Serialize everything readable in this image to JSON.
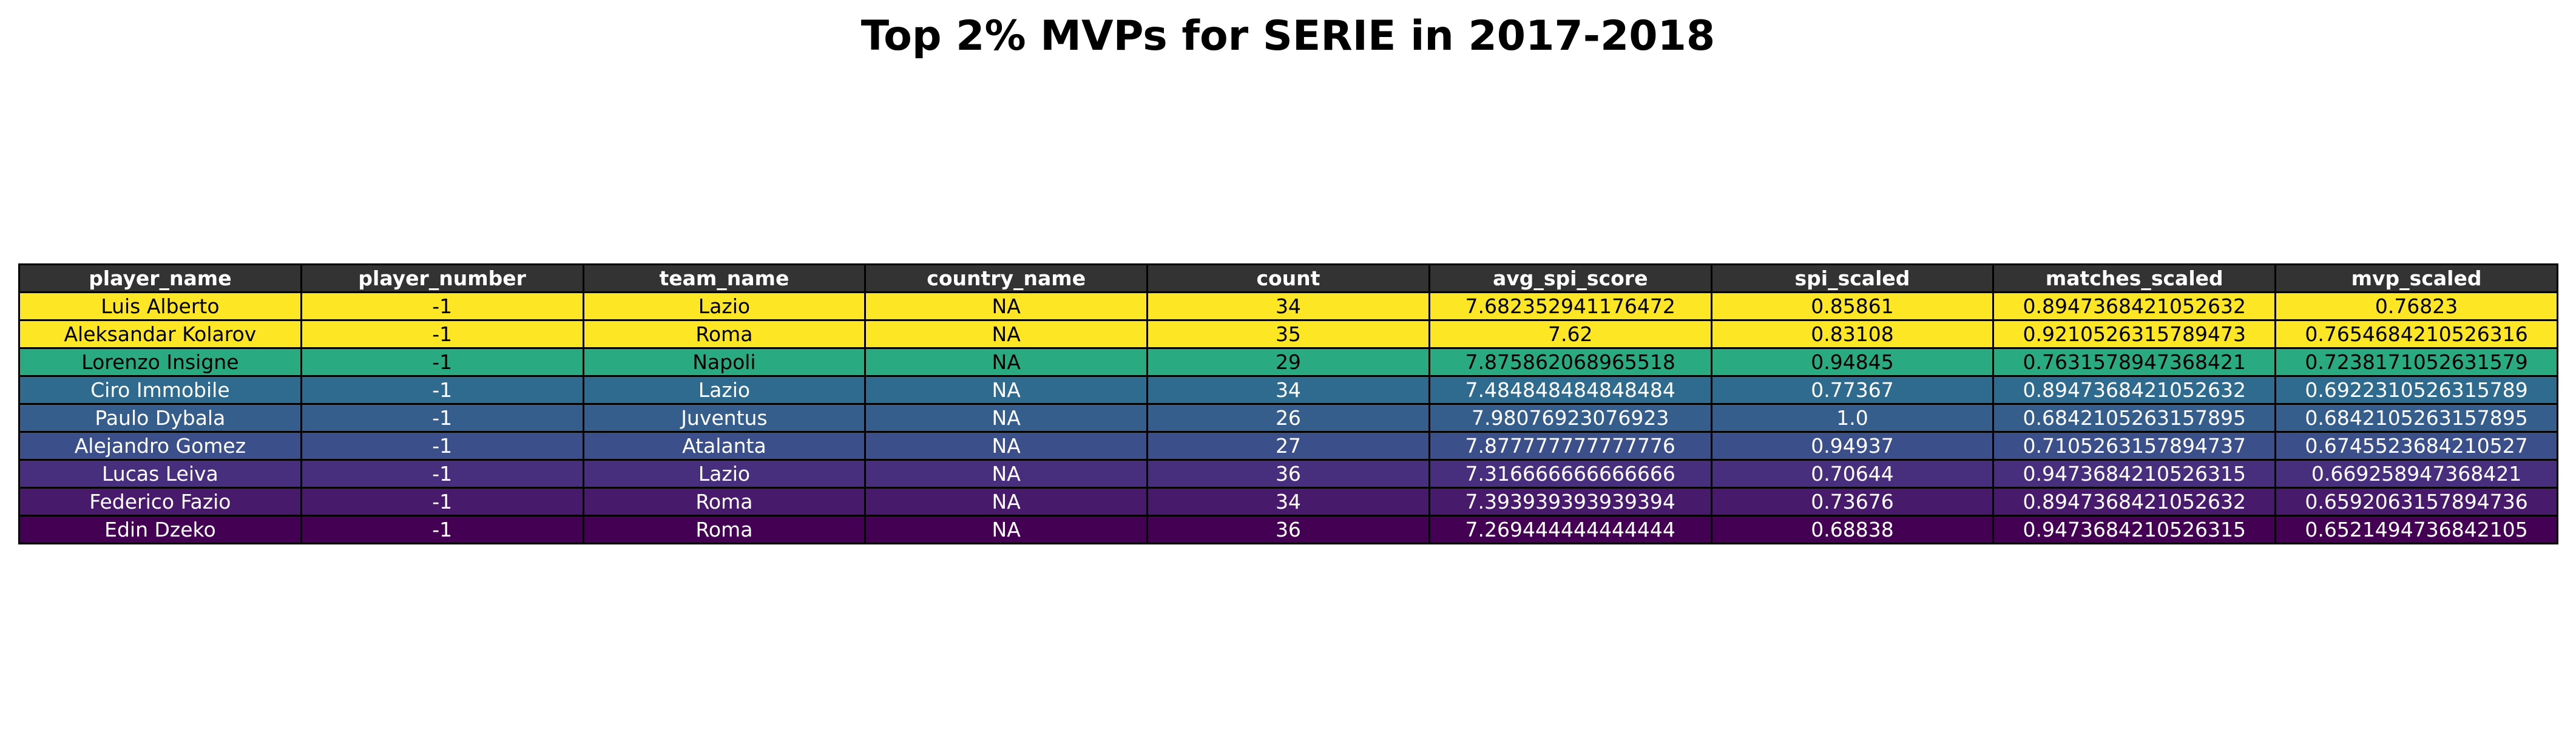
{
  "chart_data": {
    "type": "table",
    "title": "Top 2% MVPs for SERIE in 2017-2018",
    "header_color": "#333333",
    "columns": [
      "player_name",
      "player_number",
      "team_name",
      "country_name",
      "count",
      "avg_spi_score",
      "spi_scaled",
      "matches_scaled",
      "mvp_scaled"
    ],
    "rows": [
      {
        "cells": [
          "Luis Alberto",
          "-1",
          "Lazio",
          "NA",
          "34",
          "7.682352941176472",
          "0.85861",
          "0.8947368421052632",
          "0.76823"
        ],
        "fill": "#fde725",
        "text": "#000000"
      },
      {
        "cells": [
          "Aleksandar Kolarov",
          "-1",
          "Roma",
          "NA",
          "35",
          "7.62",
          "0.83108",
          "0.9210526315789473",
          "0.7654684210526316"
        ],
        "fill": "#fde725",
        "text": "#000000"
      },
      {
        "cells": [
          "Lorenzo Insigne",
          "-1",
          "Napoli",
          "NA",
          "29",
          "7.875862068965518",
          "0.94845",
          "0.7631578947368421",
          "0.7238171052631579"
        ],
        "fill": "#2aaa81",
        "text": "#000000"
      },
      {
        "cells": [
          "Ciro Immobile",
          "-1",
          "Lazio",
          "NA",
          "34",
          "7.484848484848484",
          "0.77367",
          "0.8947368421052632",
          "0.6922310526315789"
        ],
        "fill": "#2e6b8e",
        "text": "#ffffff"
      },
      {
        "cells": [
          "Paulo Dybala",
          "-1",
          "Juventus",
          "NA",
          "26",
          "7.98076923076923",
          "1.0",
          "0.6842105263157895",
          "0.6842105263157895"
        ],
        "fill": "#355e8d",
        "text": "#ffffff"
      },
      {
        "cells": [
          "Alejandro Gomez",
          "-1",
          "Atalanta",
          "NA",
          "27",
          "7.877777777777776",
          "0.94937",
          "0.7105263157894737",
          "0.6745523684210527"
        ],
        "fill": "#3b4f8a",
        "text": "#ffffff"
      },
      {
        "cells": [
          "Lucas Leiva",
          "-1",
          "Lazio",
          "NA",
          "36",
          "7.316666666666666",
          "0.70644",
          "0.9473684210526315",
          "0.669258947368421"
        ],
        "fill": "#472f7d",
        "text": "#ffffff"
      },
      {
        "cells": [
          "Federico Fazio",
          "-1",
          "Roma",
          "NA",
          "34",
          "7.393939393939394",
          "0.73676",
          "0.8947368421052632",
          "0.6592063157894736"
        ],
        "fill": "#481a6c",
        "text": "#ffffff"
      },
      {
        "cells": [
          "Edin Dzeko",
          "-1",
          "Roma",
          "NA",
          "36",
          "7.269444444444444",
          "0.68838",
          "0.9473684210526315",
          "0.6521494736842105"
        ],
        "fill": "#440154",
        "text": "#ffffff"
      }
    ]
  }
}
